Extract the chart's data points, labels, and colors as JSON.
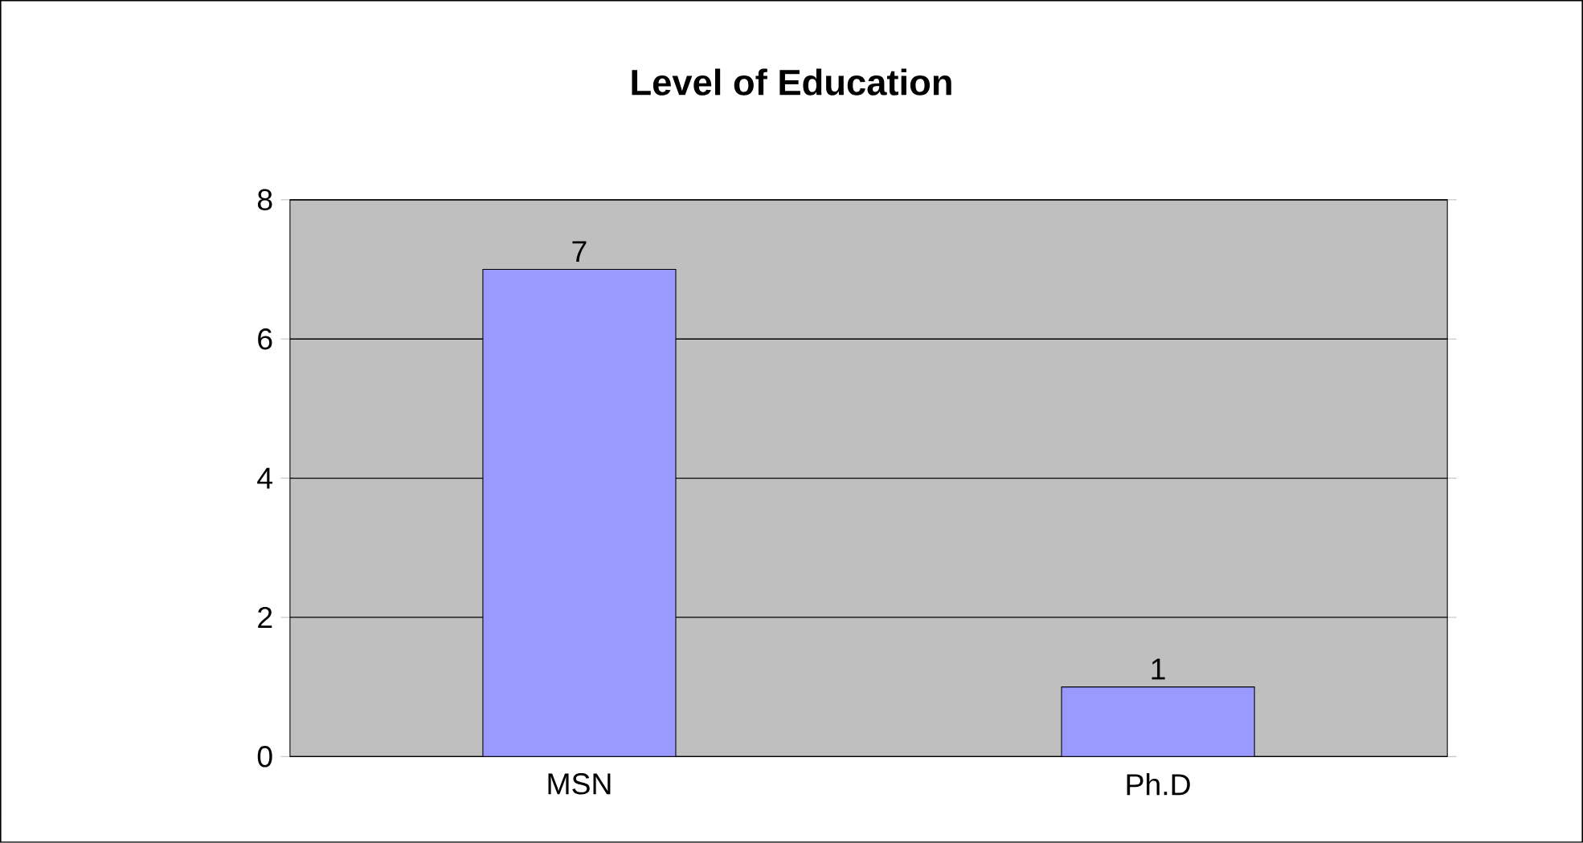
{
  "chart_data": {
    "type": "bar",
    "title": "Level of Education",
    "categories": [
      "MSN",
      "Ph.D"
    ],
    "values": [
      7,
      1
    ],
    "color": "#9999ff",
    "ylim": [
      0,
      8
    ],
    "yticks": [
      0,
      2,
      4,
      6,
      8
    ],
    "grid": "y",
    "data_labels": true
  }
}
